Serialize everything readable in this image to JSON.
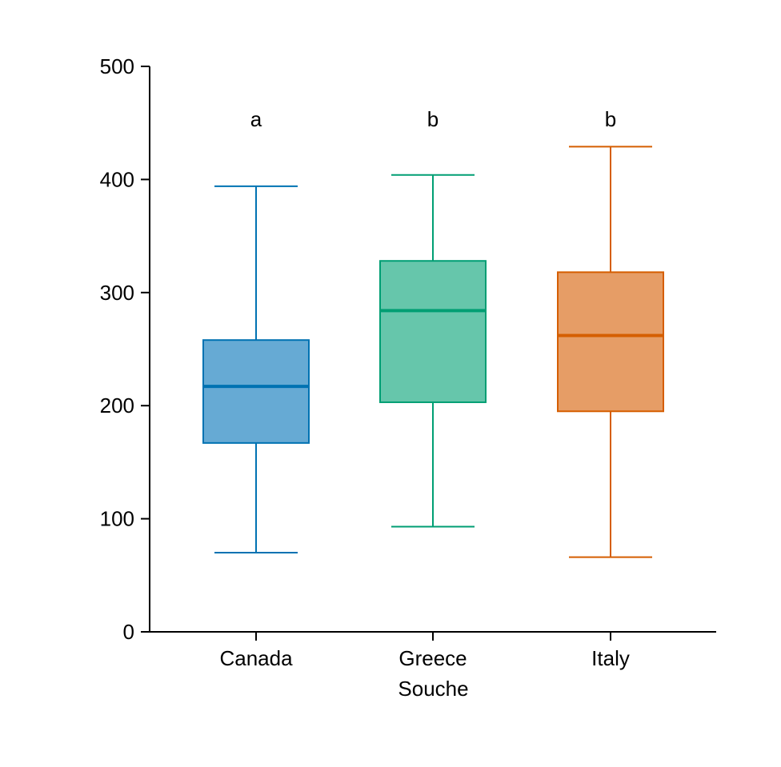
{
  "chart_data": {
    "type": "boxplot",
    "xlabel": "Souche",
    "ylabel": "",
    "ylim": [
      0,
      500
    ],
    "yticks": [
      0,
      100,
      200,
      300,
      400,
      500
    ],
    "grid": false,
    "categories": [
      "Canada",
      "Greece",
      "Italy"
    ],
    "boxes": [
      {
        "category": "Canada",
        "whisker_low": 70,
        "q1": 167,
        "median": 217,
        "q3": 258,
        "whisker_high": 394,
        "letter": "a",
        "fill": "#66aad4",
        "stroke": "#0072b2"
      },
      {
        "category": "Greece",
        "whisker_low": 93,
        "q1": 203,
        "median": 284,
        "q3": 328,
        "whisker_high": 404,
        "letter": "b",
        "fill": "#66c6ab",
        "stroke": "#009e73"
      },
      {
        "category": "Italy",
        "whisker_low": 66,
        "q1": 195,
        "median": 262,
        "q3": 318,
        "whisker_high": 429,
        "letter": "b",
        "fill": "#e69d66",
        "stroke": "#d55e00"
      }
    ]
  }
}
